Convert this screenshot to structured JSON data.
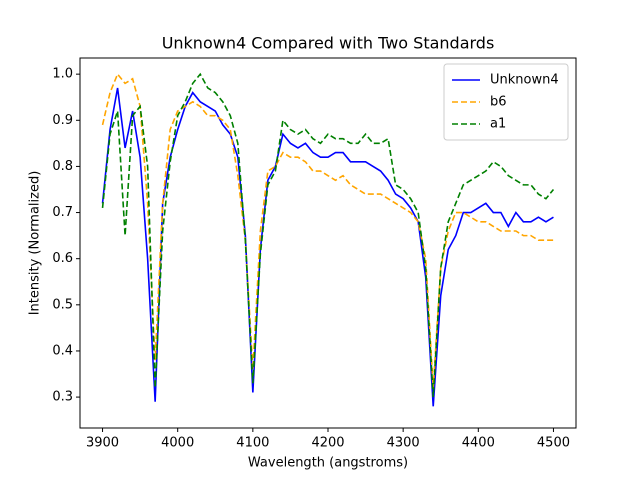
{
  "chart_data": {
    "type": "line",
    "title": "Unknown4 Compared with Two Standards",
    "x_label": "Wavelength (angstroms)",
    "y_label": "Intensity (Normalized)",
    "x": [
      3900,
      3910,
      3920,
      3930,
      3940,
      3950,
      3960,
      3970,
      3980,
      3990,
      4000,
      4010,
      4020,
      4030,
      4040,
      4050,
      4060,
      4070,
      4080,
      4090,
      4100,
      4110,
      4120,
      4130,
      4140,
      4150,
      4160,
      4170,
      4180,
      4190,
      4200,
      4210,
      4220,
      4230,
      4240,
      4250,
      4260,
      4270,
      4280,
      4290,
      4300,
      4310,
      4320,
      4330,
      4340,
      4350,
      4360,
      4370,
      4380,
      4390,
      4400,
      4410,
      4420,
      4430,
      4440,
      4450,
      4460,
      4470,
      4480,
      4490,
      4500
    ],
    "series": [
      {
        "name": "Unknown4",
        "color": "#0000ff",
        "style": "solid",
        "values": [
          0.72,
          0.88,
          0.97,
          0.84,
          0.92,
          0.82,
          0.6,
          0.29,
          0.72,
          0.82,
          0.88,
          0.93,
          0.96,
          0.94,
          0.93,
          0.92,
          0.89,
          0.87,
          0.82,
          0.65,
          0.31,
          0.62,
          0.77,
          0.8,
          0.87,
          0.85,
          0.84,
          0.85,
          0.83,
          0.82,
          0.82,
          0.83,
          0.83,
          0.81,
          0.81,
          0.81,
          0.8,
          0.79,
          0.77,
          0.74,
          0.73,
          0.71,
          0.68,
          0.56,
          0.28,
          0.52,
          0.62,
          0.65,
          0.7,
          0.7,
          0.71,
          0.72,
          0.7,
          0.7,
          0.67,
          0.7,
          0.68,
          0.68,
          0.69,
          0.68,
          0.69
        ]
      },
      {
        "name": "b6",
        "color": "#ffa500",
        "style": "dashed",
        "values": [
          0.89,
          0.96,
          1.0,
          0.98,
          0.99,
          0.93,
          0.72,
          0.38,
          0.72,
          0.88,
          0.92,
          0.93,
          0.94,
          0.93,
          0.91,
          0.91,
          0.9,
          0.88,
          0.78,
          0.64,
          0.36,
          0.66,
          0.79,
          0.8,
          0.83,
          0.82,
          0.82,
          0.81,
          0.79,
          0.79,
          0.78,
          0.77,
          0.78,
          0.76,
          0.75,
          0.74,
          0.74,
          0.74,
          0.73,
          0.72,
          0.71,
          0.7,
          0.68,
          0.6,
          0.32,
          0.58,
          0.66,
          0.7,
          0.7,
          0.69,
          0.68,
          0.68,
          0.67,
          0.66,
          0.66,
          0.66,
          0.65,
          0.65,
          0.64,
          0.64,
          0.64
        ]
      },
      {
        "name": "a1",
        "color": "#008000",
        "style": "dashed",
        "values": [
          0.71,
          0.87,
          0.92,
          0.65,
          0.91,
          0.93,
          0.8,
          0.32,
          0.66,
          0.81,
          0.91,
          0.94,
          0.98,
          1.0,
          0.97,
          0.96,
          0.94,
          0.91,
          0.85,
          0.64,
          0.33,
          0.61,
          0.76,
          0.79,
          0.9,
          0.88,
          0.87,
          0.88,
          0.86,
          0.85,
          0.87,
          0.86,
          0.86,
          0.85,
          0.85,
          0.87,
          0.85,
          0.85,
          0.86,
          0.76,
          0.75,
          0.73,
          0.7,
          0.58,
          0.3,
          0.58,
          0.68,
          0.72,
          0.76,
          0.77,
          0.78,
          0.79,
          0.81,
          0.8,
          0.78,
          0.77,
          0.76,
          0.76,
          0.74,
          0.73,
          0.75
        ]
      }
    ],
    "xlim": [
      3870,
      4530
    ],
    "xticks": [
      3900,
      4000,
      4100,
      4200,
      4300,
      4400,
      4500
    ],
    "ylim": [
      0.233,
      1.035
    ],
    "yticks": [
      0.3,
      0.4,
      0.5,
      0.6,
      0.7,
      0.8,
      0.9,
      {
        "value": 1,
        "label": "1.0"
      }
    ],
    "legend": "upper right",
    "grid": false
  }
}
